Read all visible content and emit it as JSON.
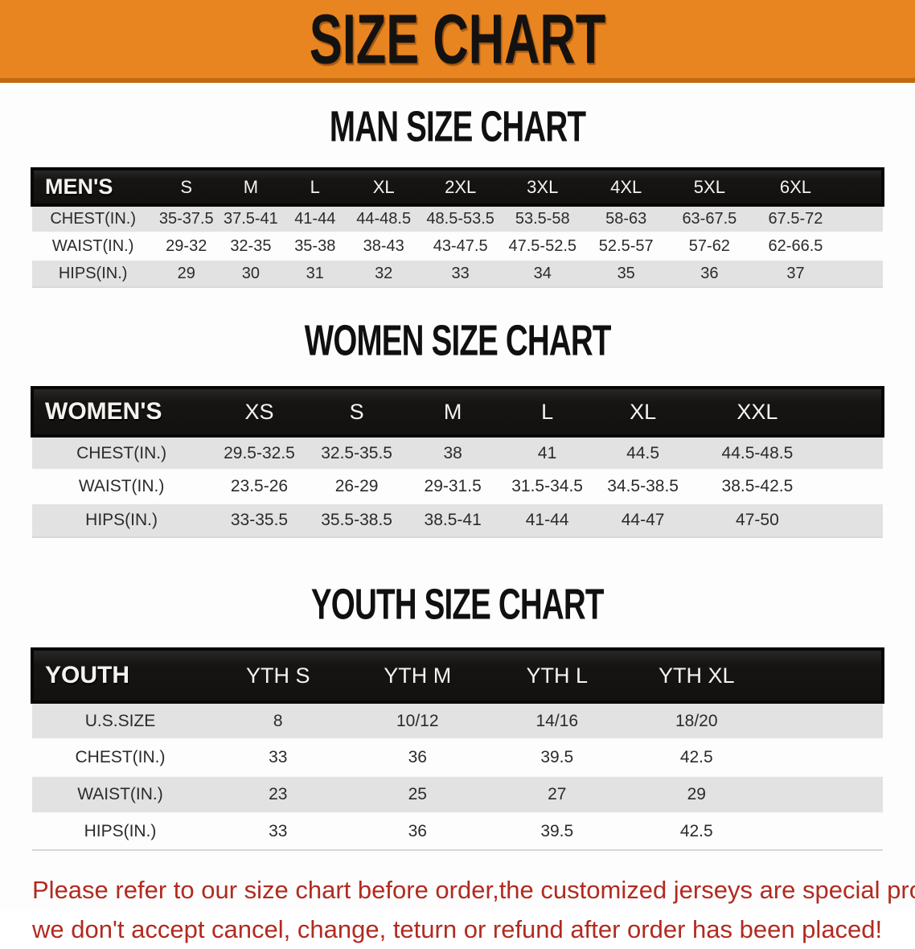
{
  "banner": {
    "title": "SIZE CHART",
    "bg_color": "#E98520",
    "strip_color": "#C26A10",
    "title_color": "#141210"
  },
  "sections": [
    {
      "id": "men",
      "heading": "MAN SIZE CHART",
      "category_label": "MEN'S",
      "columns": [
        "S",
        "M",
        "L",
        "XL",
        "2XL",
        "3XL",
        "4XL",
        "5XL",
        "6XL"
      ],
      "rows": [
        {
          "label": "CHEST(IN.)",
          "values": [
            "35-37.5",
            "37.5-41",
            "41-44",
            "44-48.5",
            "48.5-53.5",
            "53.5-58",
            "58-63",
            "63-67.5",
            "67.5-72"
          ]
        },
        {
          "label": "WAIST(IN.)",
          "values": [
            "29-32",
            "32-35",
            "35-38",
            "38-43",
            "43-47.5",
            "47.5-52.5",
            "52.5-57",
            "57-62",
            "62-66.5"
          ]
        },
        {
          "label": "HIPS(IN.)",
          "values": [
            "29",
            "30",
            "31",
            "32",
            "33",
            "34",
            "35",
            "36",
            "37"
          ]
        }
      ]
    },
    {
      "id": "women",
      "heading": "WOMEN SIZE CHART",
      "category_label": "WOMEN'S",
      "columns": [
        "XS",
        "S",
        "M",
        "L",
        "XL",
        "XXL"
      ],
      "rows": [
        {
          "label": "CHEST(IN.)",
          "values": [
            "29.5-32.5",
            "32.5-35.5",
            "38",
            "41",
            "44.5",
            "44.5-48.5"
          ]
        },
        {
          "label": "WAIST(IN.)",
          "values": [
            "23.5-26",
            "26-29",
            "29-31.5",
            "31.5-34.5",
            "34.5-38.5",
            "38.5-42.5"
          ]
        },
        {
          "label": "HIPS(IN.)",
          "values": [
            "33-35.5",
            "35.5-38.5",
            "38.5-41",
            "41-44",
            "44-47",
            "47-50"
          ]
        }
      ]
    },
    {
      "id": "youth",
      "heading": "YOUTH SIZE CHART",
      "category_label": "YOUTH",
      "columns": [
        "YTH S",
        "YTH M",
        "YTH L",
        "YTH XL"
      ],
      "rows": [
        {
          "label": "U.S.SIZE",
          "values": [
            "8",
            "10/12",
            "14/16",
            "18/20"
          ]
        },
        {
          "label": "CHEST(IN.)",
          "values": [
            "33",
            "36",
            "39.5",
            "42.5"
          ]
        },
        {
          "label": "WAIST(IN.)",
          "values": [
            "23",
            "25",
            "27",
            "29"
          ]
        },
        {
          "label": "HIPS(IN.)",
          "values": [
            "33",
            "36",
            "39.5",
            "42.5"
          ]
        }
      ]
    }
  ],
  "disclaimer": {
    "color": "#B22A20",
    "lines": [
      "Please refer to our size chart before order,the customized jerseys are special products,",
      "we don't accept cancel, change, teturn or refund after order has been placed!"
    ]
  }
}
